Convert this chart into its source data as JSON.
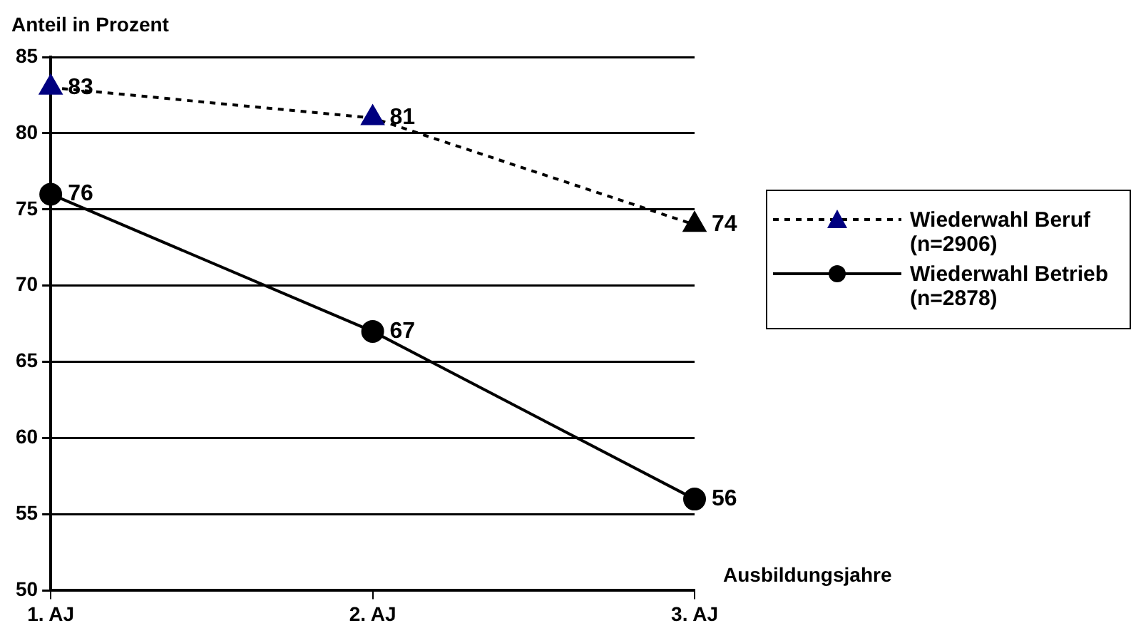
{
  "chart_data": {
    "type": "line",
    "ylabel": "Anteil in Prozent",
    "xlabel": "Ausbildungsjahre",
    "categories": [
      "1. AJ",
      "2. AJ",
      "3. AJ"
    ],
    "series": [
      {
        "name": "Wiederwahl Beruf (n=2906)",
        "color": "#000000",
        "colors": [
          "#000080",
          "#000080",
          "#000000"
        ],
        "values": [
          83,
          81,
          74
        ],
        "marker": "triangle",
        "line_style": "dashed"
      },
      {
        "name": "Wiederwahl Betrieb (n=2878)",
        "color": "#000000",
        "values": [
          76,
          67,
          56
        ],
        "marker": "circle",
        "line_style": "solid"
      }
    ],
    "ylim": [
      50,
      85
    ],
    "yticks": [
      50,
      55,
      60,
      65,
      70,
      75,
      80,
      85
    ],
    "grid": "y",
    "legend": "right",
    "data_labels": true
  }
}
